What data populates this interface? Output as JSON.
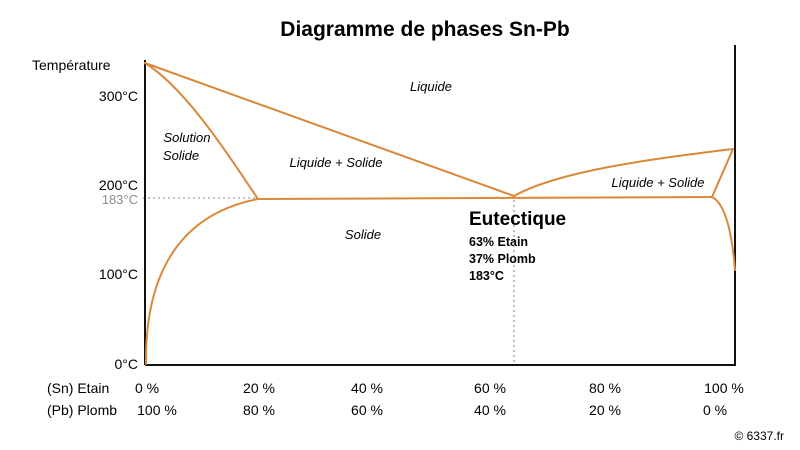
{
  "title": "Diagramme de phases Sn-Pb",
  "y_axis": {
    "label": "Température",
    "ticks": [
      "300°C",
      "200°C",
      "100°C",
      "0°C"
    ],
    "highlight_tick": "183°C"
  },
  "x_axis": {
    "row1_label": "(Sn) Etain",
    "row1_ticks": [
      "0 %",
      "20 %",
      "40 %",
      "60 %",
      "80 %",
      "100 %"
    ],
    "row2_label": "(Pb) Plomb",
    "row2_ticks": [
      "100 %",
      "80 %",
      "60 %",
      "40 %",
      "20 %",
      "0 %"
    ]
  },
  "regions": {
    "liquid": "Liquide",
    "solid_solution_line1": "Solution",
    "solid_solution_line2": "Solide",
    "liquid_solid_left": "Liquide + Solide",
    "liquid_solid_right": "Liquide + Solide",
    "solid": "Solide"
  },
  "eutectic": {
    "title": "Eutectique",
    "tin": "63% Etain",
    "lead": "37% Plomb",
    "temperature": "183°C"
  },
  "credit": "© 6337.fr",
  "colors": {
    "curve": "#d9883a",
    "guide": "#b0b0b0",
    "axis": "#111111"
  }
}
